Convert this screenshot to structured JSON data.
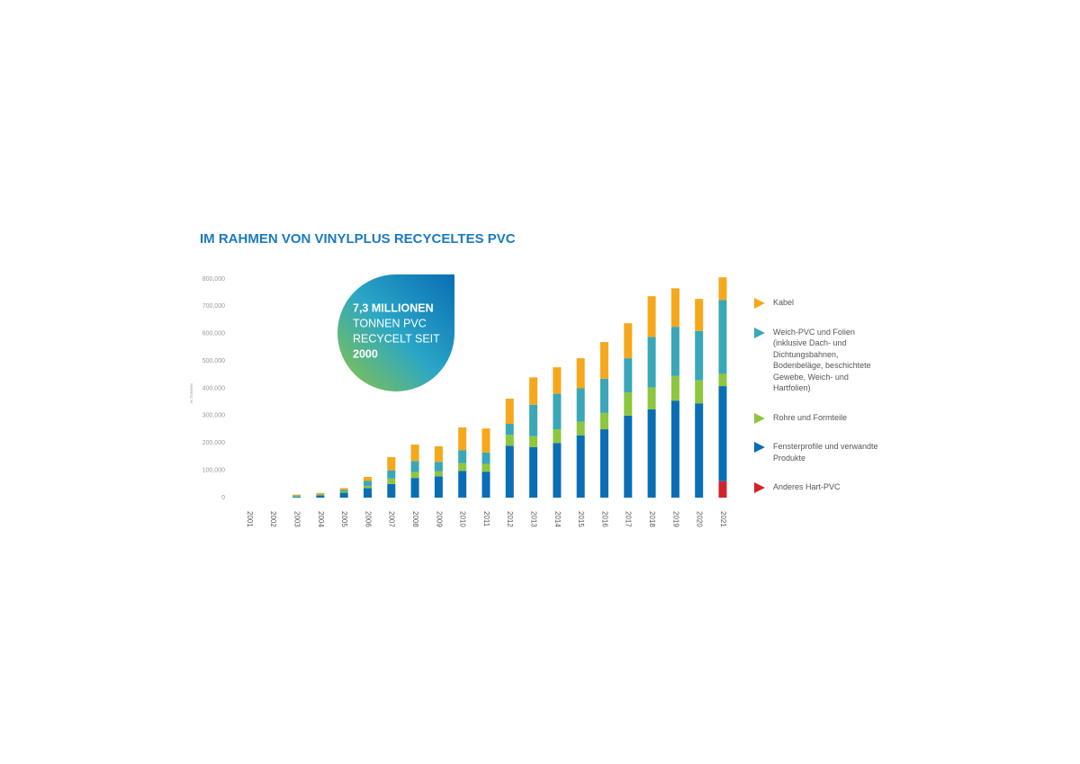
{
  "chart_data": {
    "type": "stacked-bar",
    "title": "IM RAHMEN VON VINYLPLUS RECYCELTES PVC",
    "y_label": "IN TONNEN",
    "annotation": [
      "7,3 MILLIONEN",
      "TONNEN PVC",
      "RECYCELT SEIT",
      "2000"
    ],
    "categories": [
      "2001",
      "2002",
      "2003",
      "2004",
      "2005",
      "2006",
      "2007",
      "2008",
      "2009",
      "2010",
      "2011",
      "2012",
      "2013",
      "2014",
      "2015",
      "2016",
      "2017",
      "2018",
      "2019",
      "2020",
      "2021"
    ],
    "series": [
      {
        "name": "Anderes Hart-PVC",
        "color": "#d2232a",
        "values": [
          0,
          0,
          0,
          0,
          0,
          0,
          0,
          0,
          0,
          0,
          0,
          0,
          0,
          0,
          0,
          0,
          0,
          0,
          0,
          0,
          60000
        ]
      },
      {
        "name": "Fensterprofile und verwandte Produkte",
        "color": "#0a6eb4",
        "values": [
          0,
          0,
          3000,
          8000,
          18000,
          35000,
          50000,
          72000,
          78000,
          98000,
          95000,
          190000,
          185000,
          200000,
          228000,
          250000,
          300000,
          323000,
          355000,
          345000,
          348000
        ]
      },
      {
        "name": "Rohre und Formteile",
        "color": "#8dc63f",
        "values": [
          0,
          0,
          3000,
          3000,
          5000,
          8000,
          20000,
          22000,
          18000,
          28000,
          28000,
          40000,
          40000,
          50000,
          50000,
          60000,
          85000,
          80000,
          90000,
          85000,
          45000
        ]
      },
      {
        "name": "Weich-PVC und Folien (inklusive Dach- und Dichtungsbahnen, Bodenbeläge, beschichtete Gewebe, Weich- und Hartfolien)",
        "color": "#3aa7b8",
        "values": [
          0,
          0,
          2000,
          2000,
          6000,
          18000,
          30000,
          40000,
          35000,
          48000,
          42000,
          40000,
          115000,
          130000,
          122000,
          125000,
          125000,
          185000,
          180000,
          180000,
          270000
        ]
      },
      {
        "name": "Kabel",
        "color": "#f5a81c",
        "values": [
          0,
          0,
          3000,
          4000,
          6000,
          15000,
          48000,
          60000,
          57000,
          83000,
          88000,
          92000,
          100000,
          97000,
          110000,
          134000,
          128000,
          149000,
          141000,
          117000,
          83000
        ]
      }
    ],
    "ylim": [
      0,
      800000
    ],
    "yticks": [
      0,
      {
        "value": 100000,
        "label": "100,000"
      },
      {
        "value": 200000,
        "label": "200,000"
      },
      {
        "value": 300000,
        "label": "300,000"
      },
      {
        "value": 400000,
        "label": "400,000"
      },
      {
        "value": 500000,
        "label": "500,000"
      },
      {
        "value": 600000,
        "label": "600,000"
      },
      {
        "value": 700000,
        "label": "700,000"
      },
      {
        "value": 800000,
        "label": "800,000"
      }
    ],
    "grid": false
  }
}
